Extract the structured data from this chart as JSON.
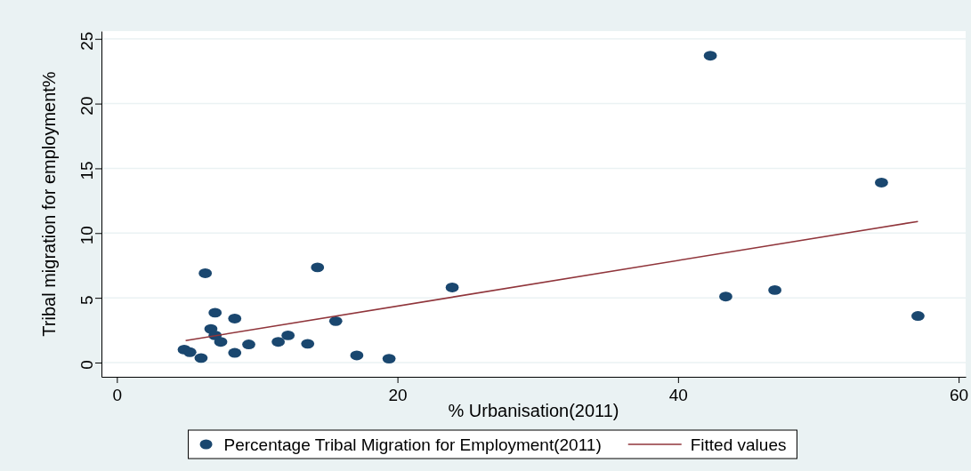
{
  "chart_data": {
    "type": "scatter",
    "xlabel": "% Urbanisation(2011)",
    "ylabel": "Tribal migration for employment%",
    "xlim": [
      -1.1,
      60.5
    ],
    "xticks": [
      0,
      20,
      40,
      60
    ],
    "ylim": [
      -1.1,
      25.6
    ],
    "yticks": [
      0,
      5,
      10,
      15,
      20,
      25
    ],
    "grid": "y",
    "legend": "bottom",
    "series": [
      {
        "name": "Percentage Tribal Migration for Employment(2011)",
        "color": "#1a476f",
        "marker": "circle",
        "x": [
          42.3,
          54.5,
          6.3,
          14.3,
          23.9,
          43.4,
          46.9,
          57.1,
          7.0,
          8.4,
          15.6,
          6.7,
          7.0,
          7.4,
          4.8,
          5.2,
          6.0,
          8.4,
          9.4,
          11.5,
          12.2,
          13.6,
          17.1,
          19.4
        ],
        "values": [
          23.7,
          13.9,
          6.9,
          7.35,
          5.8,
          5.1,
          5.6,
          3.6,
          3.85,
          3.4,
          3.2,
          2.6,
          2.1,
          1.6,
          1.0,
          0.8,
          0.35,
          0.75,
          1.4,
          1.6,
          2.1,
          1.45,
          0.55,
          0.3
        ]
      },
      {
        "name": "Fitted values",
        "type": "line",
        "color": "#90353b",
        "marker": "none",
        "x": [
          4.9,
          57.1
        ],
        "values": [
          1.7,
          10.9
        ]
      }
    ]
  }
}
